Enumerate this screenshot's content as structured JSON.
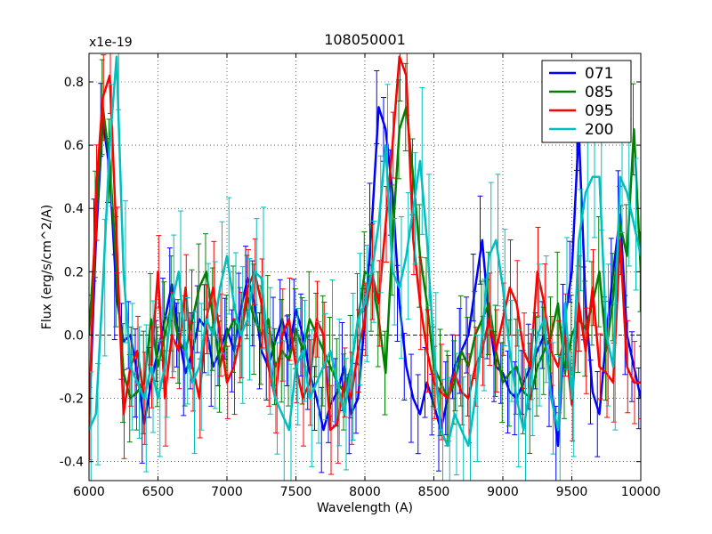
{
  "chart_data": {
    "type": "line",
    "title": "108050001",
    "xlabel": "Wavelength (A)",
    "ylabel": "Flux (erg/s/cm^2/A)",
    "offset_label": "x1e-19",
    "xlim": [
      6000,
      10000
    ],
    "ylim": [
      -0.46,
      0.89
    ],
    "grid": true,
    "legend_position": "top-right",
    "x_ticks": [
      6000,
      6500,
      7000,
      7500,
      8000,
      8500,
      9000,
      9500,
      10000
    ],
    "x_tick_labels": [
      "6000",
      "6500",
      "7000",
      "7500",
      "8000",
      "8500",
      "9000",
      "9500",
      "10000"
    ],
    "y_ticks": [
      -0.4,
      -0.2,
      0.0,
      0.2,
      0.4,
      0.6,
      0.8
    ],
    "y_tick_labels": [
      "-0.4",
      "-0.2",
      "0.0",
      "0.2",
      "0.4",
      "0.6",
      "0.8"
    ],
    "x": [
      6000,
      6050,
      6100,
      6150,
      6200,
      6250,
      6300,
      6350,
      6400,
      6450,
      6500,
      6550,
      6600,
      6650,
      6700,
      6750,
      6800,
      6850,
      6900,
      6950,
      7000,
      7050,
      7100,
      7150,
      7200,
      7250,
      7300,
      7350,
      7400,
      7450,
      7500,
      7550,
      7600,
      7650,
      7700,
      7750,
      7800,
      7850,
      7900,
      7950,
      8000,
      8050,
      8100,
      8150,
      8200,
      8250,
      8300,
      8350,
      8400,
      8450,
      8500,
      8550,
      8600,
      8650,
      8700,
      8750,
      8800,
      8850,
      8900,
      8950,
      9000,
      9050,
      9100,
      9150,
      9200,
      9250,
      9300,
      9350,
      9400,
      9450,
      9500,
      9550,
      9600,
      9650,
      9700,
      9750,
      9800,
      9850,
      9900,
      9950,
      10000
    ],
    "series": [
      {
        "name": "071",
        "color": "#0000ff",
        "error": 0.12,
        "values": [
          -0.28,
          0.3,
          0.68,
          0.52,
          0.12,
          -0.02,
          0.0,
          -0.12,
          -0.28,
          -0.15,
          -0.05,
          0.05,
          0.16,
          0.0,
          -0.12,
          -0.05,
          0.05,
          0.02,
          -0.1,
          -0.05,
          0.02,
          -0.05,
          0.08,
          0.18,
          0.1,
          -0.05,
          -0.1,
          -0.02,
          0.05,
          -0.05,
          0.08,
          0.0,
          -0.12,
          -0.2,
          -0.3,
          -0.22,
          -0.18,
          -0.1,
          -0.25,
          -0.2,
          0.05,
          0.35,
          0.72,
          0.65,
          0.45,
          0.1,
          -0.1,
          -0.2,
          -0.25,
          -0.15,
          -0.22,
          -0.3,
          -0.2,
          -0.1,
          -0.05,
          0.0,
          0.15,
          0.3,
          0.05,
          -0.1,
          -0.12,
          -0.18,
          -0.2,
          -0.15,
          -0.1,
          -0.05,
          0.0,
          -0.15,
          -0.35,
          0.05,
          0.2,
          0.65,
          0.1,
          -0.18,
          -0.25,
          0.0,
          0.2,
          0.38,
          0.0,
          -0.1,
          -0.2
        ]
      },
      {
        "name": "085",
        "color": "#008000",
        "error": 0.15,
        "values": [
          0.0,
          0.35,
          0.72,
          0.55,
          0.2,
          -0.12,
          -0.2,
          -0.18,
          -0.15,
          0.05,
          -0.1,
          0.0,
          0.1,
          -0.02,
          -0.05,
          0.05,
          0.15,
          0.2,
          0.05,
          -0.1,
          0.0,
          0.05,
          0.0,
          0.12,
          0.05,
          0.0,
          0.05,
          -0.1,
          -0.05,
          -0.08,
          0.02,
          -0.05,
          0.05,
          0.0,
          -0.05,
          -0.1,
          -0.15,
          -0.18,
          -0.1,
          0.05,
          0.2,
          0.18,
          0.05,
          -0.12,
          0.3,
          0.65,
          0.72,
          0.5,
          0.25,
          0.1,
          -0.1,
          -0.15,
          -0.2,
          -0.15,
          -0.05,
          -0.1,
          0.0,
          0.05,
          0.1,
          -0.05,
          -0.15,
          -0.12,
          -0.1,
          -0.18,
          -0.2,
          -0.1,
          -0.05,
          0.0,
          0.1,
          -0.12,
          0.0,
          0.05,
          0.02,
          0.1,
          0.2,
          -0.05,
          0.12,
          0.35,
          0.25,
          0.65,
          0.2
        ]
      },
      {
        "name": "095",
        "color": "#ff0000",
        "error": 0.13,
        "values": [
          -0.28,
          0.45,
          0.75,
          0.82,
          0.3,
          -0.25,
          -0.1,
          -0.05,
          -0.2,
          -0.1,
          0.2,
          -0.2,
          0.0,
          -0.05,
          0.15,
          -0.1,
          -0.2,
          0.05,
          0.15,
          0.0,
          -0.15,
          -0.1,
          0.0,
          0.15,
          0.2,
          0.1,
          -0.1,
          -0.2,
          0.0,
          0.05,
          -0.1,
          -0.2,
          -0.15,
          0.05,
          0.0,
          -0.3,
          -0.28,
          -0.15,
          -0.2,
          -0.05,
          0.05,
          0.2,
          0.1,
          0.35,
          0.6,
          0.88,
          0.82,
          0.3,
          0.1,
          -0.05,
          -0.15,
          -0.18,
          -0.2,
          -0.12,
          -0.18,
          -0.2,
          -0.1,
          -0.05,
          0.05,
          -0.05,
          0.05,
          0.15,
          0.1,
          -0.05,
          -0.1,
          0.2,
          0.1,
          -0.05,
          -0.1,
          0.0,
          -0.22,
          0.1,
          -0.05,
          0.15,
          -0.1,
          -0.12,
          -0.15,
          0.3,
          -0.1,
          -0.15,
          -0.15
        ]
      },
      {
        "name": "200",
        "color": "#00bfbf",
        "error": 0.2,
        "values": [
          -0.3,
          -0.25,
          0.15,
          0.6,
          0.88,
          0.2,
          -0.1,
          -0.15,
          -0.2,
          -0.1,
          -0.2,
          -0.1,
          0.1,
          0.2,
          -0.05,
          -0.15,
          -0.1,
          0.05,
          0.0,
          0.15,
          0.25,
          0.1,
          0.0,
          0.05,
          0.2,
          0.18,
          -0.05,
          -0.2,
          -0.25,
          -0.3,
          -0.1,
          -0.05,
          -0.2,
          -0.15,
          -0.1,
          -0.05,
          -0.15,
          -0.25,
          -0.1,
          0.05,
          0.1,
          0.2,
          0.35,
          0.6,
          0.2,
          0.15,
          0.25,
          0.4,
          0.55,
          0.3,
          -0.05,
          -0.3,
          -0.35,
          -0.25,
          -0.3,
          -0.35,
          -0.2,
          0.0,
          0.25,
          0.3,
          0.15,
          -0.05,
          -0.2,
          -0.3,
          -0.15,
          0.0,
          0.05,
          -0.2,
          -0.3,
          0.1,
          -0.2,
          0.3,
          0.45,
          0.5,
          0.5,
          0.0,
          -0.1,
          0.5,
          0.45,
          0.35,
          0.25
        ]
      }
    ],
    "legend": [
      "071",
      "085",
      "095",
      "200"
    ]
  }
}
